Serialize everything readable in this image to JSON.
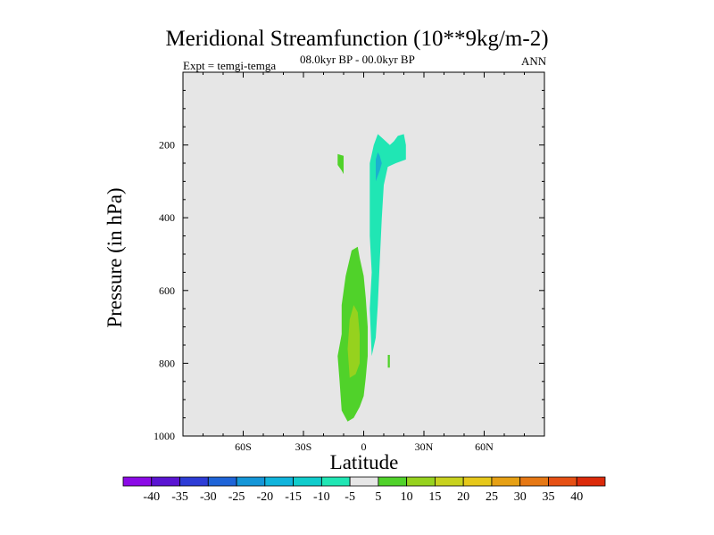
{
  "chart_data": {
    "type": "heatmap",
    "title": "Meridional Streamfunction (10**9kg/m-2)",
    "subtitle": "08.0kyr BP - 00.0kyr BP",
    "left_label": "Expt = temgi-temga",
    "right_label": "ANN",
    "xlabel": "Latitude",
    "ylabel": "Pressure (in hPa)",
    "xlim": [
      -90,
      90
    ],
    "ylim": [
      1000,
      0
    ],
    "x_ticks": [
      {
        "value": -60,
        "label": "60S"
      },
      {
        "value": -30,
        "label": "30S"
      },
      {
        "value": 0,
        "label": "0"
      },
      {
        "value": 30,
        "label": "30N"
      },
      {
        "value": 60,
        "label": "60N"
      }
    ],
    "y_ticks": [
      {
        "value": 200,
        "label": "200"
      },
      {
        "value": 400,
        "label": "400"
      },
      {
        "value": 600,
        "label": "600"
      },
      {
        "value": 800,
        "label": "800"
      },
      {
        "value": 1000,
        "label": "1000"
      }
    ],
    "background_color": "#e6e6e6",
    "colorbar": {
      "levels": [
        -40,
        -35,
        -30,
        -25,
        -20,
        -15,
        -10,
        -5,
        5,
        10,
        15,
        20,
        25,
        30,
        35,
        40
      ],
      "colors": [
        "#8b0ae6",
        "#5a14d2",
        "#2d3cd6",
        "#1e64d8",
        "#1496d8",
        "#10b4dc",
        "#10cccc",
        "#20e6b4",
        "#e6e6e6",
        "#50d22a",
        "#96d21e",
        "#c8d21e",
        "#e6c81a",
        "#e6a014",
        "#e67814",
        "#e65014",
        "#dc2a0a"
      ]
    },
    "regions": [
      {
        "name": "mid-troposphere-positive-cell",
        "value": 7.5,
        "color": "#50d22a",
        "points": [
          [
            -11,
            930
          ],
          [
            -8,
            960
          ],
          [
            -5,
            950
          ],
          [
            -2,
            920
          ],
          [
            0,
            890
          ],
          [
            1,
            840
          ],
          [
            2,
            780
          ],
          [
            2,
            700
          ],
          [
            1,
            620
          ],
          [
            0,
            560
          ],
          [
            -2,
            510
          ],
          [
            -3,
            480
          ],
          [
            -6,
            490
          ],
          [
            -9,
            560
          ],
          [
            -11,
            640
          ],
          [
            -11,
            720
          ],
          [
            -13,
            780
          ],
          [
            -12,
            850
          ]
        ]
      },
      {
        "name": "core-positive-cell",
        "value": 12.5,
        "color": "#96d21e",
        "points": [
          [
            -7,
            840
          ],
          [
            -4,
            830
          ],
          [
            -2,
            800
          ],
          [
            -2,
            720
          ],
          [
            -3,
            660
          ],
          [
            -5,
            640
          ],
          [
            -7,
            680
          ],
          [
            -8,
            760
          ]
        ]
      },
      {
        "name": "upper-tropical-negative-cell",
        "value": -7.5,
        "color": "#20e6b4",
        "points": [
          [
            4,
            780
          ],
          [
            6,
            730
          ],
          [
            7,
            640
          ],
          [
            8,
            520
          ],
          [
            9,
            400
          ],
          [
            10,
            310
          ],
          [
            12,
            260
          ],
          [
            16,
            250
          ],
          [
            21,
            240
          ],
          [
            21,
            200
          ],
          [
            20,
            170
          ],
          [
            17,
            175
          ],
          [
            15,
            190
          ],
          [
            13,
            200
          ],
          [
            9,
            180
          ],
          [
            7,
            170
          ],
          [
            5,
            200
          ],
          [
            3,
            250
          ],
          [
            3,
            350
          ],
          [
            3,
            450
          ],
          [
            4,
            550
          ],
          [
            3,
            650
          ]
        ]
      },
      {
        "name": "upper-tropical-negative-core",
        "value": -12.5,
        "color": "#1bb0cf",
        "points": [
          [
            6,
            300
          ],
          [
            8,
            270
          ],
          [
            9,
            250
          ],
          [
            8,
            230
          ],
          [
            7,
            220
          ],
          [
            6,
            240
          ]
        ]
      },
      {
        "name": "upper-southern-positive-patch",
        "value": 7.5,
        "color": "#50d22a",
        "points": [
          [
            -13,
            255
          ],
          [
            -11,
            270
          ],
          [
            -10,
            280
          ],
          [
            -10,
            230
          ],
          [
            -13,
            225
          ]
        ]
      },
      {
        "name": "near-surface-positive-streak",
        "value": 7.5,
        "color": "#50d22a",
        "points": [
          [
            12,
            812
          ],
          [
            13,
            812
          ],
          [
            13,
            777
          ],
          [
            12,
            777
          ]
        ]
      }
    ]
  }
}
